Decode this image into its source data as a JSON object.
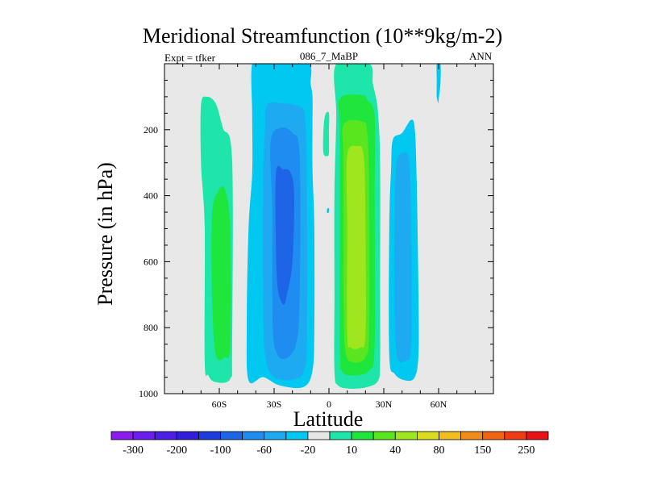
{
  "header": {
    "title": "Meridional Streamfunction (10**9kg/m-2)",
    "left_label": "Expt = tfker",
    "center_label": "086_7_MaBP",
    "right_label": "ANN"
  },
  "chart_data": {
    "type": "heatmap",
    "title": "Meridional Streamfunction (10**9kg/m-2)",
    "xlabel": "Latitude",
    "ylabel": "Pressure (in hPa)",
    "xlim": [
      -90,
      90
    ],
    "ylim": [
      0,
      1000
    ],
    "y_inverted": true,
    "x_ticks": [
      {
        "value": -60,
        "label": "60S"
      },
      {
        "value": -30,
        "label": "30S"
      },
      {
        "value": 0,
        "label": "0"
      },
      {
        "value": 30,
        "label": "30N"
      },
      {
        "value": 60,
        "label": "60N"
      }
    ],
    "y_ticks": [
      {
        "value": 200,
        "label": "200"
      },
      {
        "value": 400,
        "label": "400"
      },
      {
        "value": 600,
        "label": "600"
      },
      {
        "value": 800,
        "label": "800"
      },
      {
        "value": 1000,
        "label": "1000"
      }
    ],
    "background_color": "#e8e8e8",
    "colorbar": {
      "colors": [
        "#8a1cf0",
        "#6a1ef0",
        "#4d1ee6",
        "#301edc",
        "#1e3cdc",
        "#1e64e6",
        "#1e8cf0",
        "#1eaaf0",
        "#00c8f0",
        "#e6e6e6",
        "#1ee6aa",
        "#1ee63c",
        "#5ae61e",
        "#a0e61e",
        "#dcdc1e",
        "#f0be1e",
        "#f08c1e",
        "#f06414",
        "#f03c14",
        "#e61414"
      ],
      "labels": [
        {
          "after_index": 0,
          "text": "-300"
        },
        {
          "after_index": 2,
          "text": "-200"
        },
        {
          "after_index": 4,
          "text": "-100"
        },
        {
          "after_index": 6,
          "text": "-60"
        },
        {
          "after_index": 8,
          "text": "-20"
        },
        {
          "after_index": 10,
          "text": "10"
        },
        {
          "after_index": 12,
          "text": "40"
        },
        {
          "after_index": 14,
          "text": "80"
        },
        {
          "after_index": 16,
          "text": "150"
        },
        {
          "after_index": 18,
          "text": "250"
        }
      ]
    },
    "regions": [
      {
        "name": "SH polar cell",
        "color": "#1ee6aa",
        "outline": [
          [
            -70,
            125
          ],
          [
            -67,
            100
          ],
          [
            -62,
            120
          ],
          [
            -58,
            195
          ],
          [
            -53,
            290
          ],
          [
            -53,
            860
          ],
          [
            -54,
            955
          ],
          [
            -62,
            965
          ],
          [
            -66,
            945
          ],
          [
            -68,
            900
          ],
          [
            -68,
            500
          ],
          [
            -70,
            300
          ]
        ]
      },
      {
        "name": "SH polar cell core",
        "color": "#1ee63c",
        "outline": [
          [
            -61,
            390
          ],
          [
            -57,
            380
          ],
          [
            -54,
            500
          ],
          [
            -54,
            850
          ],
          [
            -57,
            890
          ],
          [
            -62,
            880
          ],
          [
            -64,
            700
          ],
          [
            -64,
            460
          ]
        ]
      },
      {
        "name": "SH Ferrel cell",
        "color": "#00c8f0",
        "outline": [
          [
            -42,
            0
          ],
          [
            -35,
            0
          ],
          [
            -26,
            0
          ],
          [
            -11,
            0
          ],
          [
            -10,
            60
          ],
          [
            -9,
            100
          ],
          [
            -9,
            180
          ],
          [
            -9,
            320
          ],
          [
            -8,
            500
          ],
          [
            -8,
            800
          ],
          [
            -9,
            930
          ],
          [
            -14,
            980
          ],
          [
            -27,
            975
          ],
          [
            -36,
            950
          ],
          [
            -44,
            960
          ],
          [
            -45,
            800
          ],
          [
            -44,
            500
          ],
          [
            -42,
            330
          ],
          [
            -42,
            160
          ]
        ]
      },
      {
        "name": "SH Ferrel cell inner",
        "color": "#1eaaf0",
        "outline": [
          [
            -34,
            125
          ],
          [
            -26,
            120
          ],
          [
            -16,
            130
          ],
          [
            -13,
            170
          ],
          [
            -12,
            400
          ],
          [
            -12,
            800
          ],
          [
            -13,
            920
          ],
          [
            -18,
            955
          ],
          [
            -30,
            950
          ],
          [
            -35,
            880
          ],
          [
            -36,
            700
          ],
          [
            -36,
            350
          ],
          [
            -35,
            200
          ]
        ]
      },
      {
        "name": "SH Ferrel cell core",
        "color": "#1e8cf0",
        "outline": [
          [
            -32,
            240
          ],
          [
            -27,
            195
          ],
          [
            -20,
            210
          ],
          [
            -16,
            280
          ],
          [
            -16,
            700
          ],
          [
            -18,
            850
          ],
          [
            -25,
            895
          ],
          [
            -30,
            850
          ],
          [
            -31,
            700
          ],
          [
            -31,
            450
          ]
        ]
      },
      {
        "name": "SH Ferrel cell center",
        "color": "#1e64e6",
        "outline": [
          [
            -29,
            330
          ],
          [
            -25,
            320
          ],
          [
            -21,
            330
          ],
          [
            -19,
            400
          ],
          [
            -20,
            600
          ],
          [
            -23,
            700
          ],
          [
            -25,
            730
          ],
          [
            -28,
            680
          ],
          [
            -29,
            550
          ]
        ]
      },
      {
        "name": "Tropical Hadley cell",
        "color": "#1ee6aa",
        "outline": [
          [
            4,
            0
          ],
          [
            22,
            0
          ],
          [
            24,
            60
          ],
          [
            26,
            110
          ],
          [
            27,
            160
          ],
          [
            28,
            300
          ],
          [
            28,
            700
          ],
          [
            28,
            900
          ],
          [
            27,
            960
          ],
          [
            21,
            980
          ],
          [
            12,
            985
          ],
          [
            5,
            975
          ],
          [
            3,
            930
          ],
          [
            3,
            700
          ],
          [
            3,
            400
          ],
          [
            4,
            160
          ]
        ]
      },
      {
        "name": "Tropical Hadley inner",
        "color": "#1ee63c",
        "outline": [
          [
            6,
            105
          ],
          [
            18,
            95
          ],
          [
            21,
            110
          ],
          [
            25,
            160
          ],
          [
            25,
            400
          ],
          [
            25,
            850
          ],
          [
            22,
            930
          ],
          [
            12,
            945
          ],
          [
            7,
            930
          ],
          [
            6,
            880
          ],
          [
            6,
            500
          ],
          [
            6,
            200
          ]
        ]
      },
      {
        "name": "Tropical Hadley core",
        "color": "#5ae61e",
        "outline": [
          [
            8,
            185
          ],
          [
            18,
            175
          ],
          [
            21,
            210
          ],
          [
            22,
            400
          ],
          [
            22,
            800
          ],
          [
            20,
            890
          ],
          [
            13,
            905
          ],
          [
            9,
            870
          ],
          [
            8,
            700
          ],
          [
            8,
            300
          ]
        ]
      },
      {
        "name": "Tropical Hadley center",
        "color": "#a0e61e",
        "outline": [
          [
            10,
            280
          ],
          [
            15,
            250
          ],
          [
            19,
            280
          ],
          [
            20,
            500
          ],
          [
            20,
            820
          ],
          [
            17,
            860
          ],
          [
            12,
            860
          ],
          [
            10,
            820
          ],
          [
            10,
            500
          ]
        ]
      },
      {
        "name": "Equatorial small cell",
        "color": "#1ee6aa",
        "outline": [
          [
            -2,
            155
          ],
          [
            0,
            150
          ],
          [
            0,
            210
          ],
          [
            0,
            270
          ],
          [
            -1,
            280
          ],
          [
            -3,
            270
          ],
          [
            -3,
            200
          ]
        ]
      },
      {
        "name": "NH Ferrel cell",
        "color": "#00c8f0",
        "outline": [
          [
            35,
            230
          ],
          [
            40,
            210
          ],
          [
            45,
            170
          ],
          [
            47,
            200
          ],
          [
            48,
            350
          ],
          [
            49,
            700
          ],
          [
            49,
            880
          ],
          [
            47,
            950
          ],
          [
            42,
            960
          ],
          [
            36,
            940
          ],
          [
            33,
            880
          ],
          [
            33,
            500
          ],
          [
            34,
            320
          ]
        ]
      },
      {
        "name": "NH Ferrel cell inner",
        "color": "#1eaaf0",
        "outline": [
          [
            37,
            300
          ],
          [
            41,
            270
          ],
          [
            44,
            300
          ],
          [
            45,
            500
          ],
          [
            45,
            850
          ],
          [
            42,
            900
          ],
          [
            37,
            880
          ],
          [
            36,
            700
          ],
          [
            36,
            450
          ]
        ]
      },
      {
        "name": "NH polar streak",
        "color": "#00c8f0",
        "outline": [
          [
            59,
            0
          ],
          [
            61,
            0
          ],
          [
            61,
            60
          ],
          [
            60,
            110
          ],
          [
            60,
            120
          ],
          [
            59,
            100
          ],
          [
            59,
            50
          ]
        ]
      },
      {
        "name": "Equatorial speck",
        "color": "#00c8f0",
        "outline": [
          [
            -1,
            440
          ],
          [
            0,
            438
          ],
          [
            0,
            450
          ],
          [
            -1,
            452
          ]
        ]
      }
    ]
  }
}
